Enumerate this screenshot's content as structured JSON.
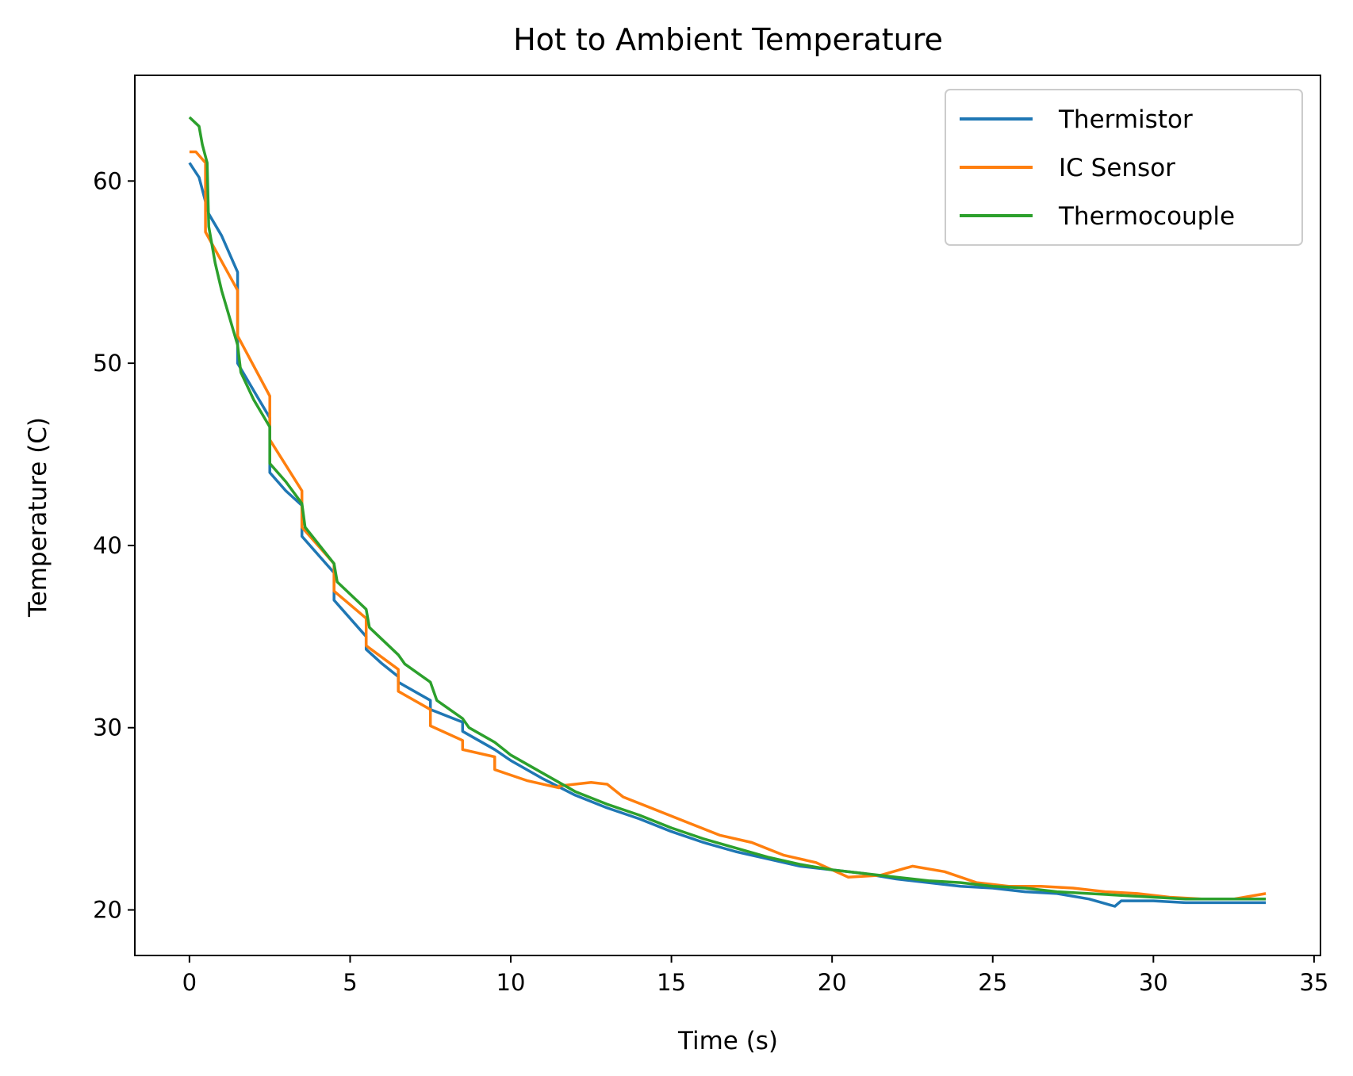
{
  "chart_data": {
    "type": "line",
    "title": "Hot to Ambient Temperature",
    "xlabel": "Time (s)",
    "ylabel": "Temperature (C)",
    "xlim": [
      -1.7,
      35.2
    ],
    "ylim": [
      17.5,
      65.8
    ],
    "xticks": [
      0,
      5,
      10,
      15,
      20,
      25,
      30,
      35
    ],
    "yticks": [
      20,
      30,
      40,
      50,
      60
    ],
    "grid": false,
    "legend_position": "top-right",
    "series": [
      {
        "name": "Thermistor",
        "color": "#1f77b4",
        "x": [
          0,
          0.3,
          0.6,
          1.0,
          1.5,
          1.5,
          2.0,
          2.5,
          2.5,
          3.0,
          3.5,
          3.5,
          4.5,
          4.5,
          5.0,
          5.5,
          5.5,
          6.0,
          6.5,
          6.5,
          7.5,
          7.5,
          8.5,
          8.5,
          9.5,
          10.0,
          11.0,
          12.0,
          13.0,
          14.0,
          15.0,
          16.0,
          17.0,
          18.0,
          19.0,
          20.0,
          21.0,
          22.0,
          23.0,
          24.0,
          25.0,
          26.0,
          27.0,
          28.0,
          28.8,
          29.0,
          30.0,
          31.0,
          32.0,
          33.5
        ],
        "y": [
          61.0,
          60.2,
          58.2,
          57.0,
          55.0,
          50.0,
          48.5,
          47.0,
          44.0,
          43.0,
          42.2,
          40.5,
          38.5,
          37.0,
          36.0,
          35.0,
          34.3,
          33.5,
          32.8,
          32.5,
          31.5,
          31.0,
          30.3,
          29.8,
          28.8,
          28.2,
          27.2,
          26.3,
          25.6,
          25.0,
          24.3,
          23.7,
          23.2,
          22.8,
          22.4,
          22.2,
          22.0,
          21.7,
          21.5,
          21.3,
          21.2,
          21.0,
          20.9,
          20.6,
          20.2,
          20.5,
          20.5,
          20.4,
          20.4,
          20.4
        ]
      },
      {
        "name": "IC Sensor",
        "color": "#ff7f0e",
        "x": [
          0,
          0.2,
          0.5,
          0.5,
          1.5,
          1.5,
          2.5,
          2.5,
          3.5,
          3.5,
          4.5,
          4.5,
          5.5,
          5.5,
          6.5,
          6.5,
          7.5,
          7.5,
          8.5,
          8.5,
          9.5,
          9.5,
          10.5,
          11.5,
          11.5,
          12.5,
          13.0,
          13.5,
          14.5,
          15.5,
          16.5,
          17.5,
          18.5,
          19.5,
          20.5,
          21.5,
          22.5,
          23.5,
          24.5,
          25.5,
          26.5,
          27.5,
          28.5,
          29.5,
          30.5,
          31.5,
          32.5,
          33.5
        ],
        "y": [
          61.6,
          61.6,
          61.0,
          57.2,
          54.0,
          51.5,
          48.2,
          45.8,
          43.0,
          41.0,
          39.0,
          37.5,
          36.0,
          34.5,
          33.2,
          32.0,
          31.0,
          30.1,
          29.3,
          28.8,
          28.4,
          27.7,
          27.1,
          26.7,
          26.8,
          27.0,
          26.9,
          26.2,
          25.5,
          24.8,
          24.1,
          23.7,
          23.0,
          22.6,
          21.8,
          21.9,
          22.4,
          22.1,
          21.5,
          21.3,
          21.3,
          21.2,
          21.0,
          20.9,
          20.7,
          20.6,
          20.6,
          20.9
        ]
      },
      {
        "name": "Thermocouple",
        "color": "#2ca02c",
        "x": [
          0,
          0.3,
          0.4,
          0.55,
          0.6,
          0.8,
          1.0,
          1.5,
          1.6,
          2.0,
          2.5,
          2.5,
          3.0,
          3.5,
          3.6,
          4.5,
          4.6,
          5.5,
          5.6,
          6.5,
          6.7,
          7.5,
          7.7,
          8.5,
          8.7,
          9.5,
          10.0,
          11.0,
          12.0,
          13.0,
          14.0,
          15.0,
          16.0,
          17.0,
          18.0,
          19.0,
          20.0,
          21.0,
          22.0,
          23.0,
          24.0,
          25.0,
          26.0,
          27.0,
          28.0,
          29.0,
          30.0,
          31.0,
          32.0,
          33.5
        ],
        "y": [
          63.5,
          63.0,
          62.0,
          61.0,
          57.5,
          55.5,
          54.0,
          51.0,
          49.5,
          48.0,
          46.5,
          44.5,
          43.5,
          42.3,
          41.0,
          39.0,
          38.0,
          36.5,
          35.5,
          34.0,
          33.5,
          32.5,
          31.5,
          30.5,
          30.0,
          29.2,
          28.5,
          27.5,
          26.5,
          25.8,
          25.2,
          24.5,
          23.9,
          23.4,
          22.9,
          22.5,
          22.2,
          22.0,
          21.8,
          21.6,
          21.5,
          21.3,
          21.2,
          21.0,
          20.9,
          20.8,
          20.7,
          20.6,
          20.6,
          20.6
        ]
      }
    ]
  }
}
